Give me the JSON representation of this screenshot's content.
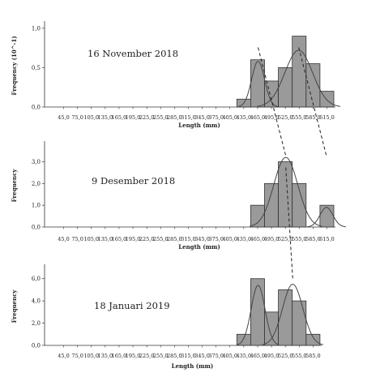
{
  "chart_data": [
    {
      "type": "bar",
      "title": "16 November 2018",
      "xlabel": "Length (mm)",
      "ylabel": "Frequency (10^-1)",
      "categories": [
        "45,0",
        "75,0",
        "105,0",
        "135,0",
        "165,0",
        "195,0",
        "225,0",
        "255,0",
        "285,0",
        "315,0",
        "345,0",
        "375,0",
        "405,0",
        "435,0",
        "465,0",
        "495,0",
        "525,0",
        "555,0",
        "585,0",
        "615,0"
      ],
      "values": [
        0,
        0,
        0,
        0,
        0,
        0,
        0,
        0,
        0,
        0,
        0,
        0,
        0,
        0.1,
        0.6,
        0.33,
        0.5,
        0.9,
        0.55,
        0.2
      ],
      "yticks": [
        "0,0",
        "0,5",
        "1,0"
      ],
      "ylim": [
        0,
        1.05
      ],
      "normal_curves": [
        {
          "mean": 466,
          "sd": 14,
          "peak": 0.58
        },
        {
          "mean": 554,
          "sd": 30,
          "peak": 0.72
        }
      ],
      "bar_color": "#9a9a9a",
      "grid": false
    },
    {
      "type": "bar",
      "title": "9 Desember 2018",
      "xlabel": "Length (mm)",
      "ylabel": "Frequency",
      "categories": [
        "45,0",
        "75,0",
        "105,0",
        "135,0",
        "165,0",
        "195,0",
        "225,0",
        "255,0",
        "285,0",
        "315,0",
        "345,0",
        "375,0",
        "405,0",
        "435,0",
        "465,0",
        "495,0",
        "525,0",
        "555,0",
        "585,0",
        "615,0"
      ],
      "values": [
        0,
        0,
        0,
        0,
        0,
        0,
        0,
        0,
        0,
        0,
        0,
        0,
        0,
        0,
        1,
        2,
        3,
        2,
        0,
        1
      ],
      "yticks": [
        "0,0",
        "1,0",
        "2,0",
        "3,0"
      ],
      "ylim": [
        0,
        3.8
      ],
      "normal_curves": [
        {
          "mean": 526,
          "sd": 26,
          "peak": 3.2
        },
        {
          "mean": 614,
          "sd": 14,
          "peak": 0.9
        }
      ],
      "bar_color": "#9a9a9a",
      "grid": false
    },
    {
      "type": "bar",
      "title": "18 Januari 2019",
      "xlabel": "Length (mm)",
      "ylabel": "Frequency",
      "categories": [
        "45,0",
        "75,0",
        "105,0",
        "135,0",
        "165,0",
        "195,0",
        "225,0",
        "255,0",
        "285,0",
        "315,0",
        "345,0",
        "375,0",
        "405,0",
        "435,0",
        "465,0",
        "495,0",
        "525,0",
        "555,0",
        "585,0"
      ],
      "values": [
        0,
        0,
        0,
        0,
        0,
        0,
        0,
        0,
        0,
        0,
        0,
        0,
        0,
        1,
        6,
        3,
        5,
        4,
        1
      ],
      "yticks": [
        "0,0",
        "2,0",
        "4,0",
        "6,0"
      ],
      "ylim": [
        0,
        7
      ],
      "normal_curves": [
        {
          "mean": 466,
          "sd": 15,
          "peak": 5.4
        },
        {
          "mean": 541,
          "sd": 22,
          "peak": 5.5
        }
      ],
      "bar_color": "#9a9a9a",
      "grid": false
    }
  ]
}
